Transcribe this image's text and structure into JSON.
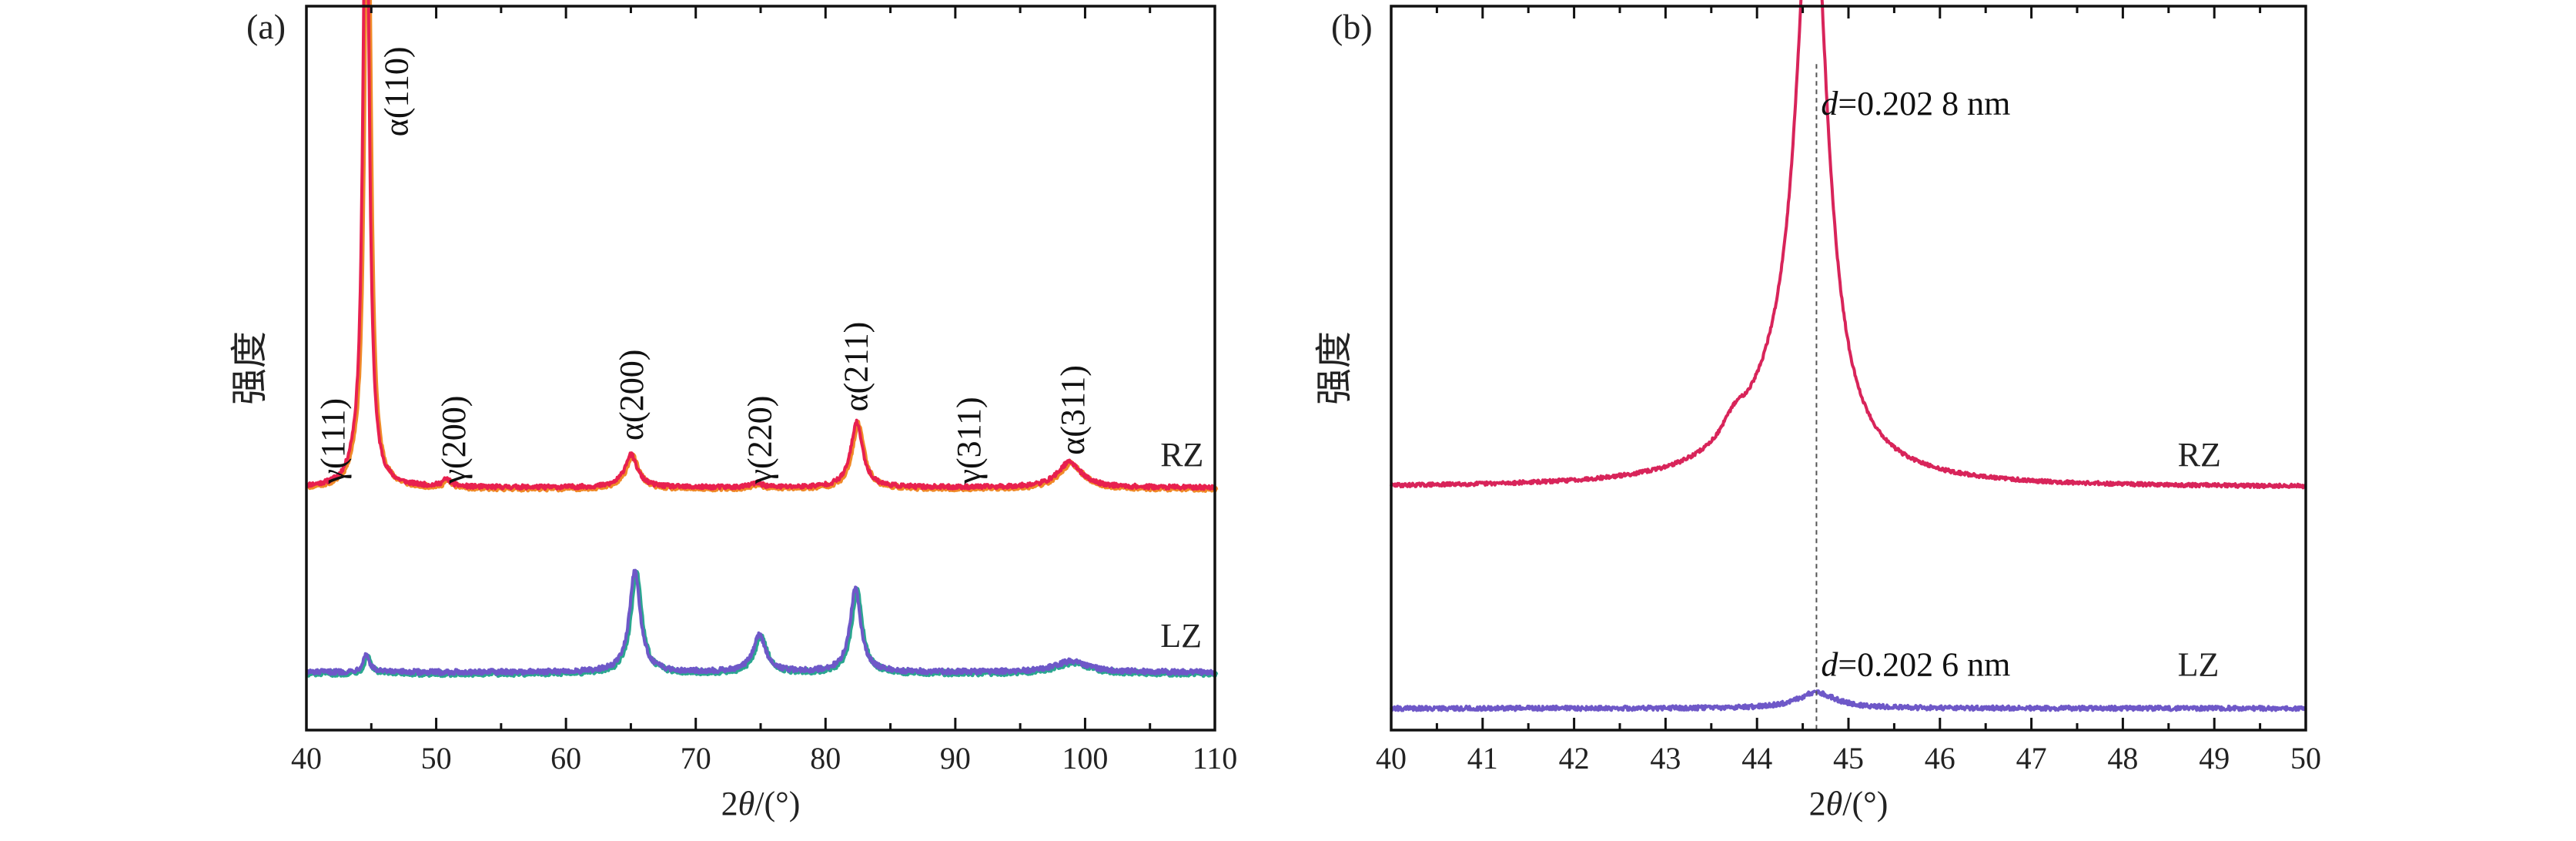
{
  "chart_data": [
    {
      "type": "line",
      "panel_label": "(a)",
      "xlabel": "2θ/(°)",
      "ylabel": "强度",
      "xlim": [
        40,
        110
      ],
      "xticks": [
        40,
        50,
        60,
        70,
        80,
        90,
        100,
        110
      ],
      "x_minor_step": 5,
      "ylim": [
        0,
        1
      ],
      "grid": false,
      "series": [
        {
          "name": "RZ",
          "color": "#e8204f",
          "shadow_color": "#f08a28",
          "baseline": 0.335,
          "noise": 0.003,
          "peaks": [
            {
              "x": 43.6,
              "height": 0.012,
              "width": 0.5
            },
            {
              "x": 44.6,
              "height": 0.955,
              "width": 0.28
            },
            {
              "x": 50.8,
              "height": 0.01,
              "width": 0.4
            },
            {
              "x": 65.0,
              "height": 0.045,
              "width": 0.6
            },
            {
              "x": 74.7,
              "height": 0.006,
              "width": 0.5
            },
            {
              "x": 82.4,
              "height": 0.09,
              "width": 0.55
            },
            {
              "x": 98.8,
              "height": 0.035,
              "width": 1.1
            }
          ]
        },
        {
          "name": "LZ",
          "color": "#6e58c8",
          "shadow_color": "#2aa78f",
          "baseline": 0.08,
          "noise": 0.0035,
          "peaks": [
            {
              "x": 44.6,
              "height": 0.025,
              "width": 0.3
            },
            {
              "x": 65.3,
              "height": 0.14,
              "width": 0.5
            },
            {
              "x": 74.9,
              "height": 0.05,
              "width": 0.6
            },
            {
              "x": 82.3,
              "height": 0.115,
              "width": 0.5
            },
            {
              "x": 98.9,
              "height": 0.015,
              "width": 1.5
            }
          ]
        }
      ],
      "annotations": [
        {
          "text": "γ(111)",
          "x": 42.0,
          "y": 0.34
        },
        {
          "text": "α(110)",
          "x": 46.9,
          "y": 0.82
        },
        {
          "text": "γ(200)",
          "x": 51.3,
          "y": 0.34
        },
        {
          "text": "α(200)",
          "x": 65.0,
          "y": 0.4
        },
        {
          "text": "γ(220)",
          "x": 74.9,
          "y": 0.34
        },
        {
          "text": "α(211)",
          "x": 82.3,
          "y": 0.44
        },
        {
          "text": "γ(311)",
          "x": 91.0,
          "y": 0.34
        },
        {
          "text": "α(311)",
          "x": 99.0,
          "y": 0.38
        }
      ],
      "series_labels": [
        {
          "text": "RZ",
          "x": 105.8,
          "y": 0.365
        },
        {
          "text": "LZ",
          "x": 105.8,
          "y": 0.115
        }
      ]
    },
    {
      "type": "line",
      "panel_label": "(b)",
      "xlabel": "2θ/(°)",
      "ylabel": "强度",
      "xlim": [
        40,
        50
      ],
      "xticks": [
        40,
        41,
        42,
        43,
        44,
        45,
        46,
        47,
        48,
        49,
        50
      ],
      "x_minor_step": 0.5,
      "ylim": [
        0,
        1
      ],
      "grid": false,
      "reference_line_x": 44.65,
      "series": [
        {
          "name": "RZ",
          "color": "#d8245a",
          "baseline": 0.335,
          "noise": 0.0025,
          "peaks": [
            {
              "x": 44.6,
              "height": 0.8,
              "width": 0.2
            },
            {
              "x": 44.3,
              "height": 0.09,
              "width": 0.6
            },
            {
              "x": 43.75,
              "height": 0.025,
              "width": 0.15
            }
          ]
        },
        {
          "name": "LZ",
          "color": "#6e58c8",
          "baseline": 0.03,
          "noise": 0.003,
          "peaks": [
            {
              "x": 44.65,
              "height": 0.022,
              "width": 0.25
            }
          ]
        }
      ],
      "annotations": [
        {
          "prefix": "d",
          "text": "=0.202 8 nm",
          "x": 44.7,
          "y": 0.85,
          "color": "#d8245a"
        },
        {
          "prefix": "d",
          "text": "=0.202 6 nm",
          "x": 44.7,
          "y": 0.075,
          "color": "#6e58c8"
        }
      ],
      "series_labels": [
        {
          "text": "RZ",
          "x": 48.6,
          "y": 0.365,
          "color": "#d8245a"
        },
        {
          "text": "LZ",
          "x": 48.6,
          "y": 0.075,
          "color": "#6e58c8"
        }
      ]
    }
  ]
}
